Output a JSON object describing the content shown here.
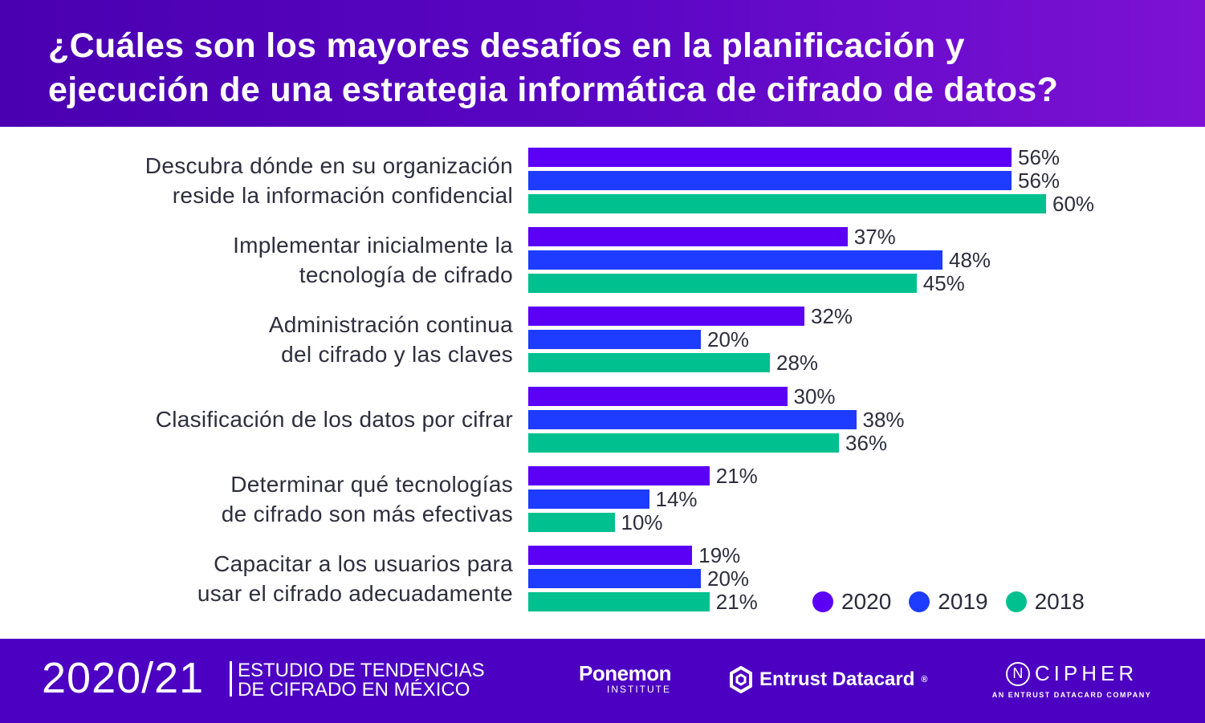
{
  "header": {
    "title_line1": "¿Cuáles son los mayores desafíos en la planificación y",
    "title_line2": "ejecución de una estrategia informática de cifrado de datos?"
  },
  "chart_data": {
    "type": "bar",
    "orientation": "horizontal",
    "categories": [
      [
        "Descubra dónde en su organización",
        "reside la información confidencial"
      ],
      [
        "Implementar inicialmente la",
        "tecnología de cifrado"
      ],
      [
        "Administración continua",
        "del cifrado y las claves"
      ],
      [
        "Clasificación de los datos por cifrar"
      ],
      [
        "Determinar qué tecnologías",
        "de cifrado son más efectivas"
      ],
      [
        "Capacitar a los usuarios para",
        "usar el cifrado adecuadamente"
      ]
    ],
    "series": [
      {
        "name": "2020",
        "color": "#5b00f5",
        "values": [
          56,
          37,
          32,
          30,
          21,
          19
        ]
      },
      {
        "name": "2019",
        "color": "#1d3cff",
        "values": [
          56,
          48,
          20,
          38,
          14,
          20
        ]
      },
      {
        "name": "2018",
        "color": "#00c08f",
        "values": [
          60,
          45,
          28,
          36,
          10,
          21
        ]
      }
    ],
    "value_suffix": "%",
    "legend": "bottom-right",
    "grid": false
  },
  "footer": {
    "year": "2020/21",
    "study_line1": "ESTUDIO DE TENDENCIAS",
    "study_line2": "DE CIFRADO EN MÉXICO",
    "ponemon": "Ponemon",
    "ponemon_sub": "INSTITUTE",
    "entrust": "Entrust Datacard",
    "entrust_mark": "®",
    "ncipher_n": "N",
    "ncipher": "CIPHER",
    "ncipher_sub": "AN ENTRUST DATACARD COMPANY"
  }
}
